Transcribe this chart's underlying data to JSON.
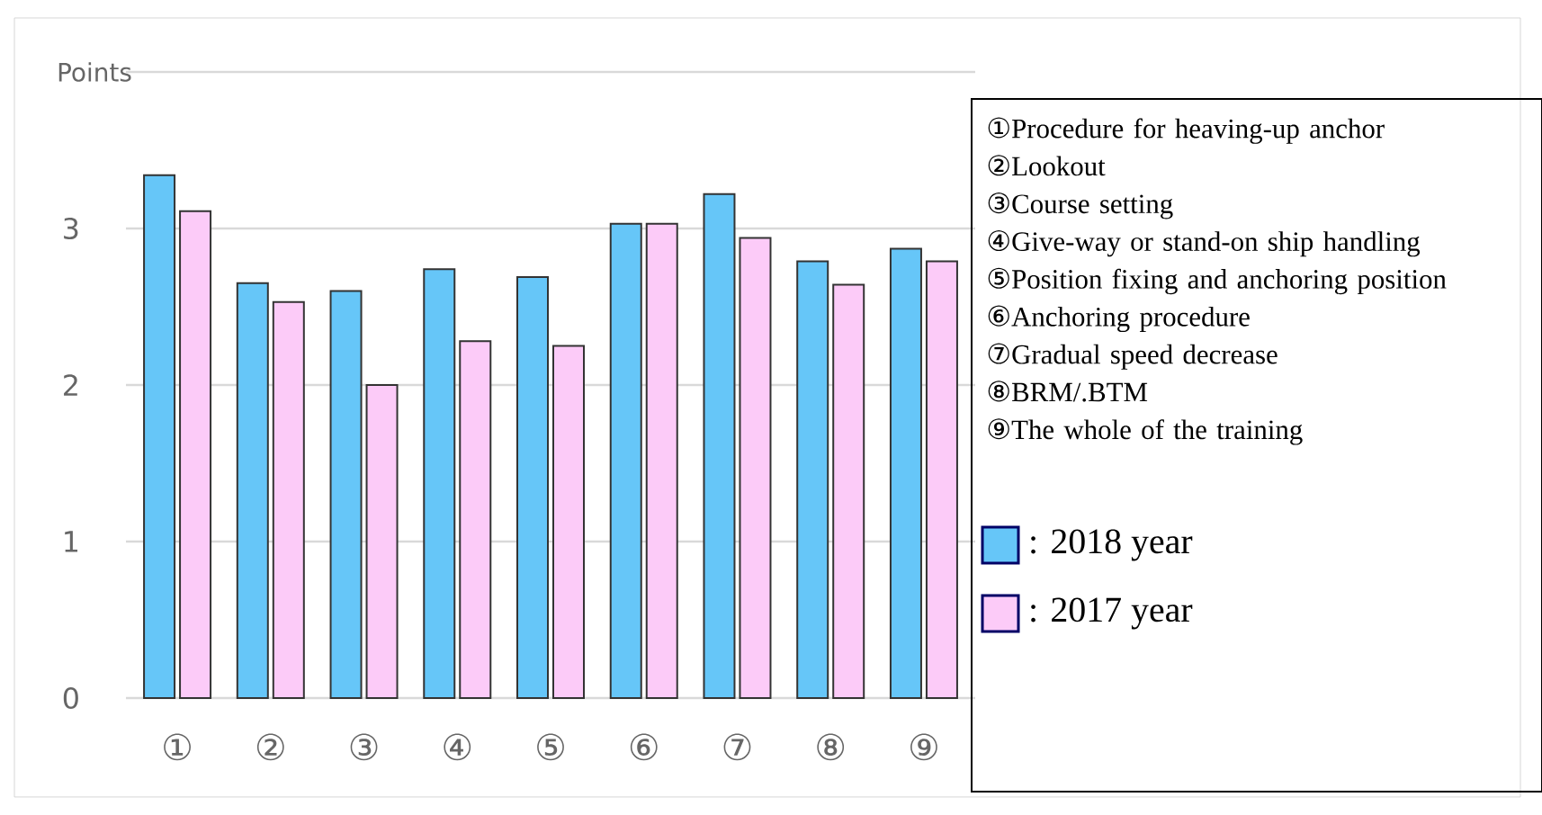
{
  "chart_data": {
    "type": "bar",
    "ylabel": "Points",
    "categories": [
      "①",
      "②",
      "③",
      "④",
      "⑤",
      "⑥",
      "⑦",
      "⑧",
      "⑨"
    ],
    "series": [
      {
        "name": ": 2018 year",
        "color": "#66c6f8",
        "values": [
          3.34,
          2.65,
          2.6,
          2.74,
          2.69,
          3.03,
          3.22,
          2.79,
          2.87
        ]
      },
      {
        "name": ": 2017 year",
        "color": "#fccbf8",
        "values": [
          3.11,
          2.53,
          2.0,
          2.28,
          2.25,
          3.03,
          2.94,
          2.64,
          2.79
        ]
      }
    ],
    "annotations": [
      "Procedure for heaving-up anchor",
      "Lookout",
      "Course setting",
      "Give-way or stand-on ship handling",
      "Position fixing and anchoring position",
      "Anchoring procedure",
      "Gradual speed decrease",
      "BRM/.BTM",
      "The whole of the training"
    ],
    "ylim": [
      0,
      4
    ],
    "yticks": [
      0,
      1,
      2,
      3,
      {
        "value": 4,
        "label": null
      }
    ],
    "grid": "y",
    "legend": "right"
  }
}
